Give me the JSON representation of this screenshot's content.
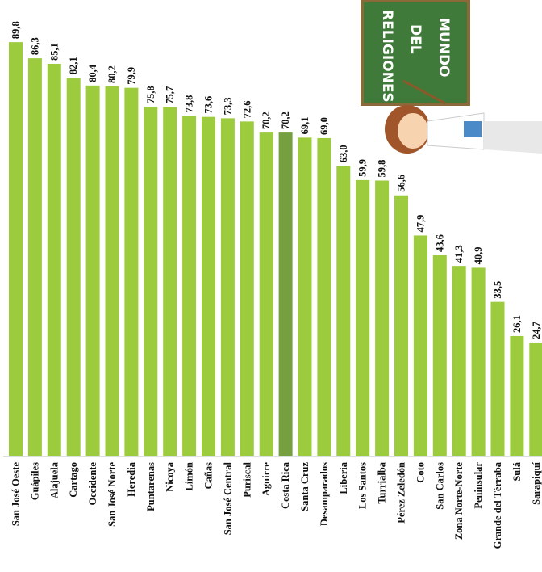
{
  "chart_data": {
    "type": "bar",
    "annotations": [
      "RELIGIONES",
      "DEL",
      "MUNDO"
    ],
    "categories": [
      "San José Oeste",
      "Guápiles",
      "Alajuela",
      "Cartago",
      "Occidente",
      "San José Norte",
      "Heredia",
      "Puntarenas",
      "Nicoya",
      "Limón",
      "Cañas",
      "San José Central",
      "Puriscal",
      "Aguirre",
      "Costa Rica",
      "Santa Cruz",
      "Desamparados",
      "Liberia",
      "Los Santos",
      "Turrialba",
      "Pérez Zeledón",
      "Coto",
      "San Carlos",
      "Zona Norte-Norte",
      "Peninsular",
      "Grande del Térraba",
      "Sulá",
      "Sarapiquí"
    ],
    "values": [
      89.8,
      86.3,
      85.1,
      82.1,
      80.4,
      80.2,
      79.9,
      75.8,
      75.7,
      73.8,
      73.6,
      73.3,
      72.6,
      70.2,
      70.2,
      69.1,
      69.0,
      63.0,
      59.9,
      59.8,
      56.6,
      47.9,
      43.6,
      41.3,
      40.9,
      33.5,
      26.1,
      24.7
    ],
    "value_labels": [
      "89,8",
      "86,3",
      "85,1",
      "82,1",
      "80,4",
      "80,2",
      "79,9",
      "75,8",
      "75,7",
      "73,8",
      "73,6",
      "73,3",
      "72,6",
      "70,2",
      "70,2",
      "69,1",
      "69,0",
      "63,0",
      "59,9",
      "59,8",
      "56,6",
      "47,9",
      "43,6",
      "41,3",
      "40,9",
      "33,5",
      "26,1",
      "24,7"
    ],
    "colors": [
      "#9ccb3d",
      "#9ccb3d",
      "#9ccb3d",
      "#9ccb3d",
      "#9ccb3d",
      "#9ccb3d",
      "#9ccb3d",
      "#9ccb3d",
      "#9ccb3d",
      "#9ccb3d",
      "#9ccb3d",
      "#9ccb3d",
      "#9ccb3d",
      "#9ccb3d",
      "#76a03f",
      "#9ccb3d",
      "#9ccb3d",
      "#9ccb3d",
      "#9ccb3d",
      "#9ccb3d",
      "#9ccb3d",
      "#9ccb3d",
      "#9ccb3d",
      "#9ccb3d",
      "#9ccb3d",
      "#9ccb3d",
      "#9ccb3d",
      "#9ccb3d"
    ],
    "ylim": [
      0,
      90
    ]
  }
}
